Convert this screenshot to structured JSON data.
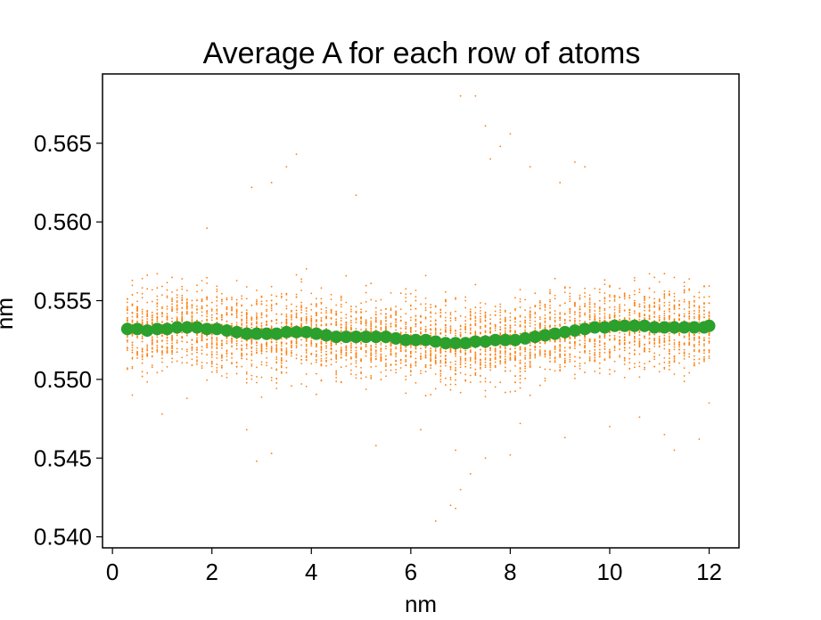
{
  "chart_data": {
    "type": "scatter",
    "title": "Average A for each row of atoms",
    "xlabel": "nm",
    "ylabel": "nm",
    "xlim": [
      -0.2,
      12.6
    ],
    "ylim": [
      0.5393,
      0.5694
    ],
    "xticks": [
      0,
      2,
      4,
      6,
      8,
      10,
      12
    ],
    "xtick_labels": [
      "0",
      "2",
      "4",
      "6",
      "8",
      "10",
      "12"
    ],
    "yticks": [
      0.54,
      0.545,
      0.55,
      0.555,
      0.56,
      0.565
    ],
    "ytick_labels": [
      "0.540",
      "0.545",
      "0.550",
      "0.555",
      "0.560",
      "0.565"
    ],
    "grid": false,
    "legend": "none",
    "series": [
      {
        "role": "individual atoms",
        "color": "#ff7f0e",
        "marker": "small dot",
        "x_range": [
          0.3,
          12.0
        ],
        "x_step": 0.1,
        "typical_band": [
          0.549,
          0.557
        ],
        "outlier_points": [
          [
            3.7,
            0.5643
          ],
          [
            3.5,
            0.5635
          ],
          [
            2.8,
            0.5622
          ],
          [
            3.2,
            0.5625
          ],
          [
            4.9,
            0.5617
          ],
          [
            7.0,
            0.568
          ],
          [
            7.3,
            0.568
          ],
          [
            7.5,
            0.5661
          ],
          [
            7.8,
            0.5648
          ],
          [
            8.0,
            0.5656
          ],
          [
            7.6,
            0.564
          ],
          [
            8.4,
            0.5635
          ],
          [
            9.3,
            0.5638
          ],
          [
            9.5,
            0.5635
          ],
          [
            9.0,
            0.5625
          ],
          [
            6.5,
            0.541
          ],
          [
            6.8,
            0.542
          ],
          [
            6.9,
            0.5418
          ],
          [
            7.0,
            0.543
          ],
          [
            7.2,
            0.544
          ],
          [
            2.9,
            0.5448
          ],
          [
            3.2,
            0.5453
          ],
          [
            5.3,
            0.5458
          ],
          [
            6.9,
            0.5455
          ],
          [
            7.5,
            0.545
          ],
          [
            8.0,
            0.5452
          ],
          [
            9.1,
            0.5463
          ],
          [
            11.1,
            0.5465
          ],
          [
            11.3,
            0.5455
          ],
          [
            11.8,
            0.5462
          ],
          [
            1.0,
            0.5478
          ],
          [
            2.7,
            0.5468
          ],
          [
            6.2,
            0.5468
          ],
          [
            10.0,
            0.547
          ],
          [
            12.0,
            0.5485
          ],
          [
            0.4,
            0.549
          ],
          [
            1.5,
            0.5488
          ],
          [
            8.2,
            0.5472
          ],
          [
            10.6,
            0.5476
          ],
          [
            1.9,
            0.5596
          ]
        ]
      },
      {
        "role": "row average",
        "color": "#2ca02c",
        "marker": "large circle",
        "x": [
          0.3,
          0.5,
          0.7,
          0.9,
          1.1,
          1.3,
          1.5,
          1.7,
          1.9,
          2.1,
          2.3,
          2.5,
          2.7,
          2.9,
          3.1,
          3.3,
          3.5,
          3.7,
          3.9,
          4.1,
          4.3,
          4.5,
          4.7,
          4.9,
          5.1,
          5.3,
          5.5,
          5.7,
          5.9,
          6.1,
          6.3,
          6.5,
          6.7,
          6.9,
          7.1,
          7.3,
          7.5,
          7.7,
          7.9,
          8.1,
          8.3,
          8.5,
          8.7,
          8.9,
          9.1,
          9.3,
          9.5,
          9.7,
          9.9,
          10.1,
          10.3,
          10.5,
          10.7,
          10.9,
          11.1,
          11.3,
          11.5,
          11.7,
          11.9,
          12.0
        ],
        "y": [
          0.5532,
          0.5532,
          0.5531,
          0.5532,
          0.5532,
          0.5533,
          0.5533,
          0.5533,
          0.5532,
          0.5532,
          0.5531,
          0.553,
          0.5529,
          0.5529,
          0.5529,
          0.5529,
          0.553,
          0.553,
          0.553,
          0.5529,
          0.5528,
          0.5527,
          0.5527,
          0.5527,
          0.5527,
          0.5527,
          0.5527,
          0.5526,
          0.5525,
          0.5525,
          0.5525,
          0.5524,
          0.5523,
          0.5523,
          0.5523,
          0.5524,
          0.5524,
          0.5525,
          0.5525,
          0.5525,
          0.5526,
          0.5527,
          0.5528,
          0.5529,
          0.553,
          0.5531,
          0.5532,
          0.5533,
          0.5533,
          0.5534,
          0.5534,
          0.5534,
          0.5534,
          0.5533,
          0.5533,
          0.5533,
          0.5533,
          0.5533,
          0.5533,
          0.5534
        ]
      }
    ]
  }
}
